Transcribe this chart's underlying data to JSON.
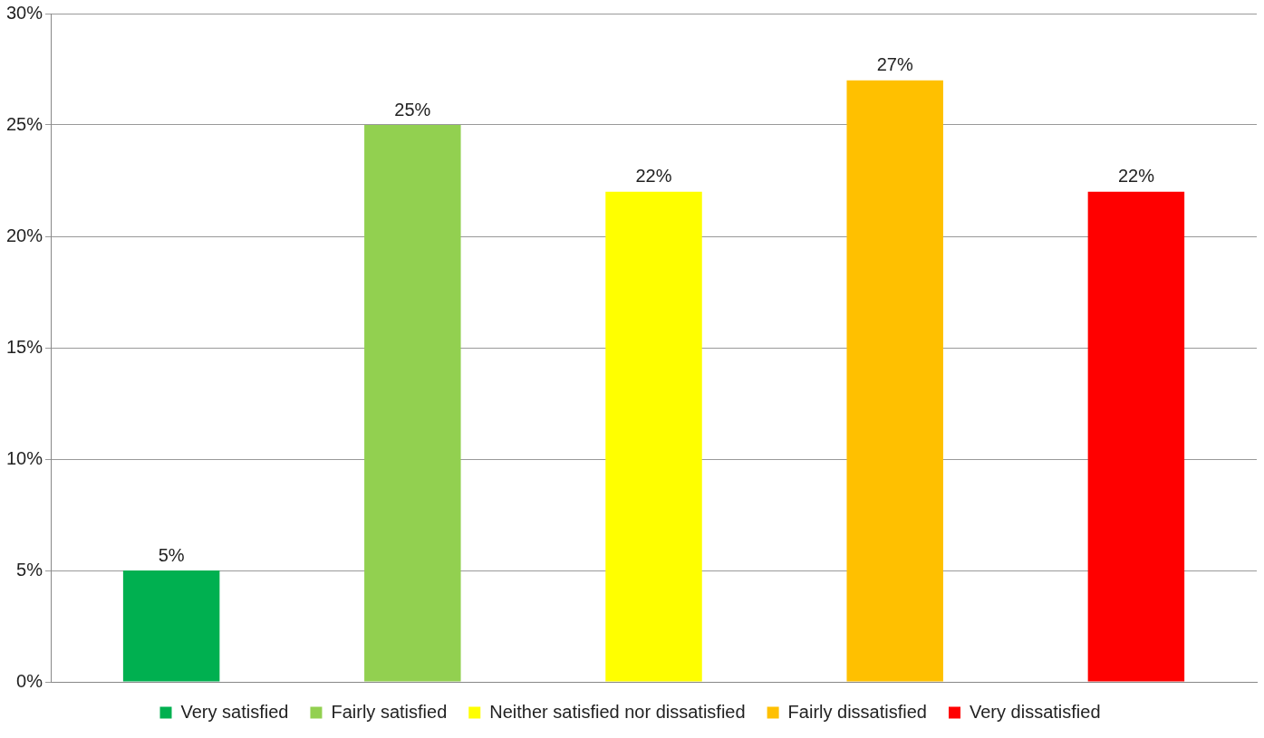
{
  "chart_data": {
    "type": "bar",
    "categories": [
      null,
      null,
      null,
      null,
      null
    ],
    "series": [
      {
        "name": "Very satisfied",
        "color": "#00b050",
        "values": [
          5,
          null,
          null,
          null,
          null
        ],
        "value_labels": [
          "5%",
          null,
          null,
          null,
          null
        ]
      },
      {
        "name": "Fairly satisfied",
        "color": "#92d050",
        "values": [
          null,
          25,
          null,
          null,
          null
        ],
        "value_labels": [
          null,
          "25%",
          null,
          null,
          null
        ]
      },
      {
        "name": "Neither satisfied nor dissatisfied",
        "color": "#ffff00",
        "values": [
          null,
          null,
          22,
          null,
          null
        ],
        "value_labels": [
          null,
          null,
          "22%",
          null,
          null
        ]
      },
      {
        "name": "Fairly dissatisfied",
        "color": "#ffc000",
        "values": [
          null,
          null,
          null,
          27,
          null
        ],
        "value_labels": [
          null,
          null,
          null,
          "27%",
          null
        ]
      },
      {
        "name": "Very dissatisfied",
        "color": "#ff0000",
        "values": [
          null,
          null,
          null,
          null,
          22
        ],
        "value_labels": [
          null,
          null,
          null,
          null,
          "22%"
        ]
      }
    ],
    "ylim": [
      0,
      30
    ],
    "yticks": [
      {
        "value": 0,
        "label": "0%"
      },
      {
        "value": 5,
        "label": "5%"
      },
      {
        "value": 10,
        "label": "10%"
      },
      {
        "value": 15,
        "label": "15%"
      },
      {
        "value": 20,
        "label": "20%"
      },
      {
        "value": 25,
        "label": "25%"
      },
      {
        "value": 30,
        "label": "30%"
      }
    ],
    "grid": "y",
    "legend": "bottom",
    "tick_labels": "y"
  }
}
